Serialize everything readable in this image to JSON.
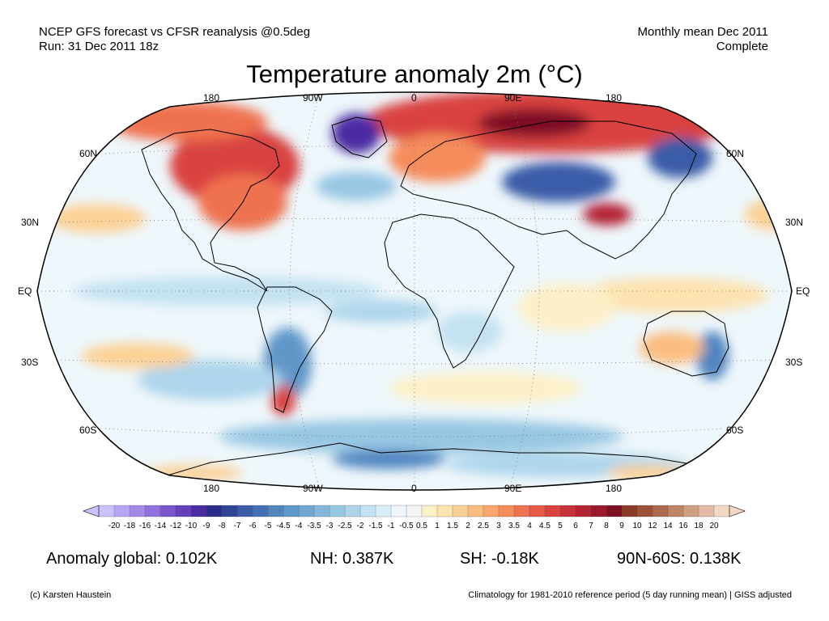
{
  "header": {
    "left_line1": "NCEP GFS forecast vs CFSR reanalysis @0.5deg",
    "left_line2": "Run: 31 Dec 2011 18z",
    "right_line1": "Monthly mean Dec 2011",
    "right_line2": "Complete"
  },
  "title": "Temperature anomaly 2m (°C)",
  "map": {
    "projection": "robinson",
    "lon_labels_top": [
      "180",
      "90W",
      "0",
      "90E",
      "180"
    ],
    "lon_labels_bottom": [
      "180",
      "90W",
      "0",
      "90E",
      "180"
    ],
    "lat_labels_left": [
      "60N",
      "30N",
      "EQ",
      "30S",
      "60S"
    ],
    "lat_labels_right": [
      "60N",
      "30N",
      "EQ",
      "30S",
      "60S"
    ],
    "colors": {
      "land_outline": "#000000",
      "ocean_background": "#eaf4fb",
      "grid": "#777777"
    },
    "anomaly_regions": [
      {
        "name": "Arctic Russia / Siberia",
        "anomaly": 8
      },
      {
        "name": "Northern Canada / Hudson Bay",
        "anomaly": 5
      },
      {
        "name": "Eastern USA",
        "anomaly": 3.5
      },
      {
        "name": "Northern Europe",
        "anomaly": 4
      },
      {
        "name": "Alaska",
        "anomaly": 3
      },
      {
        "name": "Greenland",
        "anomaly": -8
      },
      {
        "name": "Central Asia / Mongolia",
        "anomaly": -5
      },
      {
        "name": "Tibetan Plateau",
        "anomaly": 6
      },
      {
        "name": "Eastern Siberia coast",
        "anomaly": -4
      },
      {
        "name": "Southern South America",
        "anomaly": -2
      },
      {
        "name": "Patagonia",
        "anomaly": 5
      },
      {
        "name": "Eastern Australia",
        "anomaly": -2
      },
      {
        "name": "Southern Ocean",
        "anomaly": -1.5
      },
      {
        "name": "Tropical Pacific (La Niña)",
        "anomaly": -1
      },
      {
        "name": "Antarctica East",
        "anomaly": -3
      },
      {
        "name": "North Pacific",
        "anomaly": 1.5
      }
    ]
  },
  "colorbar": {
    "ticks": [
      "-20",
      "-18",
      "-16",
      "-14",
      "-12",
      "-10",
      "-9",
      "-8",
      "-7",
      "-6",
      "-5",
      "-4.5",
      "-4",
      "-3.5",
      "-3",
      "-2.5",
      "-2",
      "-1.5",
      "-1",
      "-0.5",
      "0.5",
      "1",
      "1.5",
      "2",
      "2.5",
      "3",
      "3.5",
      "4",
      "4.5",
      "5",
      "6",
      "7",
      "8",
      "9",
      "10",
      "12",
      "14",
      "16",
      "18",
      "20"
    ],
    "colors": [
      "#ccc0ff",
      "#b8a4f5",
      "#a48ae8",
      "#9070db",
      "#7a55cc",
      "#6440bb",
      "#4b2aa3",
      "#2c2c8c",
      "#2e4598",
      "#3a5ba8",
      "#4470b5",
      "#5085c0",
      "#5f97c9",
      "#70a8d2",
      "#83b8db",
      "#98c7e3",
      "#aed5eb",
      "#c4e2f2",
      "#d9eef8",
      "#edf7fb",
      "#f4f4f4",
      "#fdf0c8",
      "#fde3b0",
      "#fcd196",
      "#fbbd7f",
      "#f9a56b",
      "#f58c5c",
      "#ef7250",
      "#e65946",
      "#d9433f",
      "#c8323a",
      "#b42434",
      "#9c1a2e",
      "#7f1126",
      "#8a3a28",
      "#9b5238",
      "#ab6a4c",
      "#bd8466",
      "#cf9f84",
      "#e1bba4",
      "#f2d8c6"
    ]
  },
  "stats": {
    "global": "Anomaly global: 0.102K",
    "nh": "NH: 0.387K",
    "sh": "SH: -0.18K",
    "band": "90N-60S: 0.138K"
  },
  "footer": {
    "credit": "(c) Karsten Haustein",
    "note": "Climatology for 1981-2010 reference period (5 day running mean) | GISS adjusted"
  }
}
